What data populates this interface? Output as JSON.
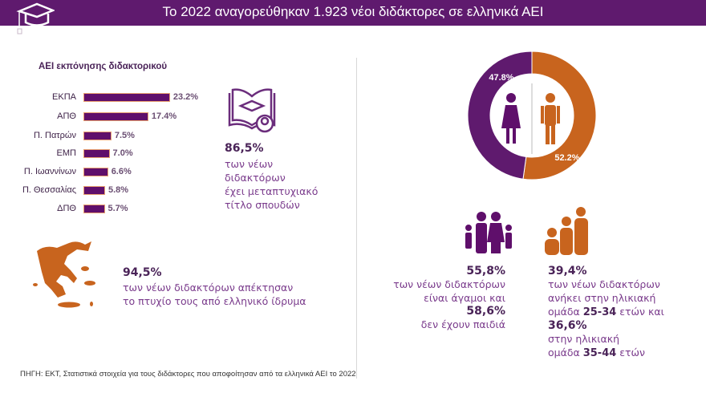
{
  "header": {
    "title": "Το 2022 αναγορεύθηκαν 1.923 νέοι διδάκτορες σε ελληνικά ΑΕΙ",
    "icon": "graduation-cap-icon"
  },
  "colors": {
    "purple": "#5f1a6e",
    "orange": "#c8641e"
  },
  "chart_data": [
    {
      "type": "bar",
      "title": "ΑΕΙ εκπόνησης διδακτορικού",
      "orientation": "horizontal",
      "categories": [
        "ΕΚΠΑ",
        "ΑΠΘ",
        "Π. Πατρών",
        "ΕΜΠ",
        "Π. Ιωαννίνων",
        "Π. Θεσσαλίας",
        "ΔΠΘ"
      ],
      "values": [
        23.2,
        17.4,
        7.5,
        7.0,
        6.6,
        5.8,
        5.7
      ],
      "labels": [
        "23.2%",
        "17.4%",
        "7.5%",
        "7.0%",
        "6.6%",
        "5.8%",
        "5.7%"
      ],
      "grid": false
    },
    {
      "type": "pie",
      "variant": "donut",
      "categories": [
        "Γυναίκες",
        "Άνδρες"
      ],
      "values": [
        47.8,
        52.2
      ],
      "labels": [
        "47.8%",
        "52.2%"
      ],
      "colors": [
        "#5f1a6e",
        "#c8641e"
      ]
    }
  ],
  "postgrad": {
    "value": "86,5%",
    "lines": [
      "των νέων",
      "διδακτόρων",
      "έχει μεταπτυχιακό",
      "τίτλο σπουδών"
    ]
  },
  "greek_degree": {
    "value": "94,5%",
    "lines": [
      "των νέων διδακτόρων απέκτησαν",
      "το πτυχίο τους από ελληνικό ίδρυμα"
    ]
  },
  "family": {
    "value1": "55,8%",
    "line1": "των νέων διδακτόρων",
    "line2": "είναι άγαμοι και",
    "value2": "58,6%",
    "line3": "δεν έχουν παιδιά"
  },
  "age": {
    "value1": "39,4%",
    "line1": "των νέων διδακτόρων",
    "line2": "ανήκει στην ηλικιακή",
    "line3_pre": "ομάδα ",
    "range1": "25-34",
    "line3_post": " ετών και",
    "value2": "36,6%",
    "line4": "στην ηλικιακή",
    "line5_pre": "ομάδα ",
    "range2": "35-44",
    "line5_post": " ετών"
  },
  "source": "ΠΗΓΗ: ΕΚΤ, Στατιστικά στοιχεία για τους διδάκτορες που αποφοίτησαν από τα ελληνικά ΑΕΙ το 2022"
}
